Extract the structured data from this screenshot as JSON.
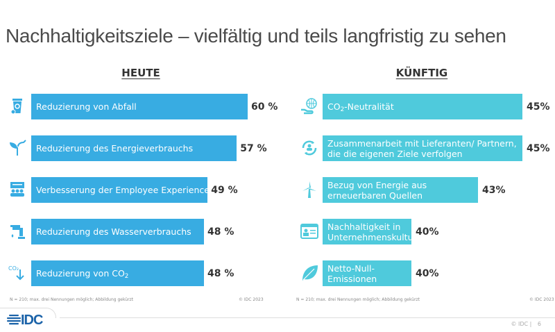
{
  "title": "Nachhaltigkeitsziele – vielfältig und teils langfristig zu sehen",
  "colors": {
    "heute": "#38ace2",
    "kuenftig": "#4fcadc",
    "icon_heute": "#38ace2",
    "icon_kuenftig": "#4fcadc"
  },
  "chart_data": [
    {
      "type": "bar",
      "orientation": "horizontal",
      "title": "HEUTE",
      "categories": [
        "Reduzierung von Abfall",
        "Reduzierung des Energieverbrauchs",
        "Verbesserung der Employee Experience",
        "Reduzierung des Wasserverbrauchs",
        "Reduzierung von CO2"
      ],
      "values": [
        60,
        57,
        49,
        48,
        48
      ],
      "value_labels": [
        "60 %",
        "57 %",
        "49 %",
        "48 %",
        "48 %"
      ],
      "icons": [
        "recycle-bin-icon",
        "plant-plug-icon",
        "employee-group-icon",
        "water-tap-icon",
        "co2-down-icon"
      ],
      "axis_truncated": true,
      "grid": false,
      "footnote": "N = 210; max. drei Nennungen möglich; Abbildung gekürzt",
      "copyright": "© IDC 2023"
    },
    {
      "type": "bar",
      "orientation": "horizontal",
      "title": "KÜNFTIG",
      "categories": [
        "CO2-Neutralität",
        "Zusammenarbeit mit Lieferanten/ Partnern, die die eigenen Ziele verfolgen",
        "Bezug von Energie aus erneuerbaren Quellen",
        "Nachhaltigkeit in Unternehmenskultur",
        "Netto-Null-Emissionen"
      ],
      "values": [
        45,
        45,
        43,
        40,
        40
      ],
      "value_labels": [
        "45%",
        "45%",
        "43%",
        "40%",
        "40%"
      ],
      "icons": [
        "globe-hand-icon",
        "partner-cycle-icon",
        "wind-turbine-icon",
        "culture-card-icon",
        "leaf-icon"
      ],
      "axis_truncated": true,
      "grid": false,
      "footnote": "N = 210; max. drei Nennungen möglich; Abbildung gekürzt",
      "copyright": "© IDC 2023"
    }
  ],
  "footer": {
    "logo": "IDC",
    "copyright": "© IDC |",
    "page": "6"
  }
}
